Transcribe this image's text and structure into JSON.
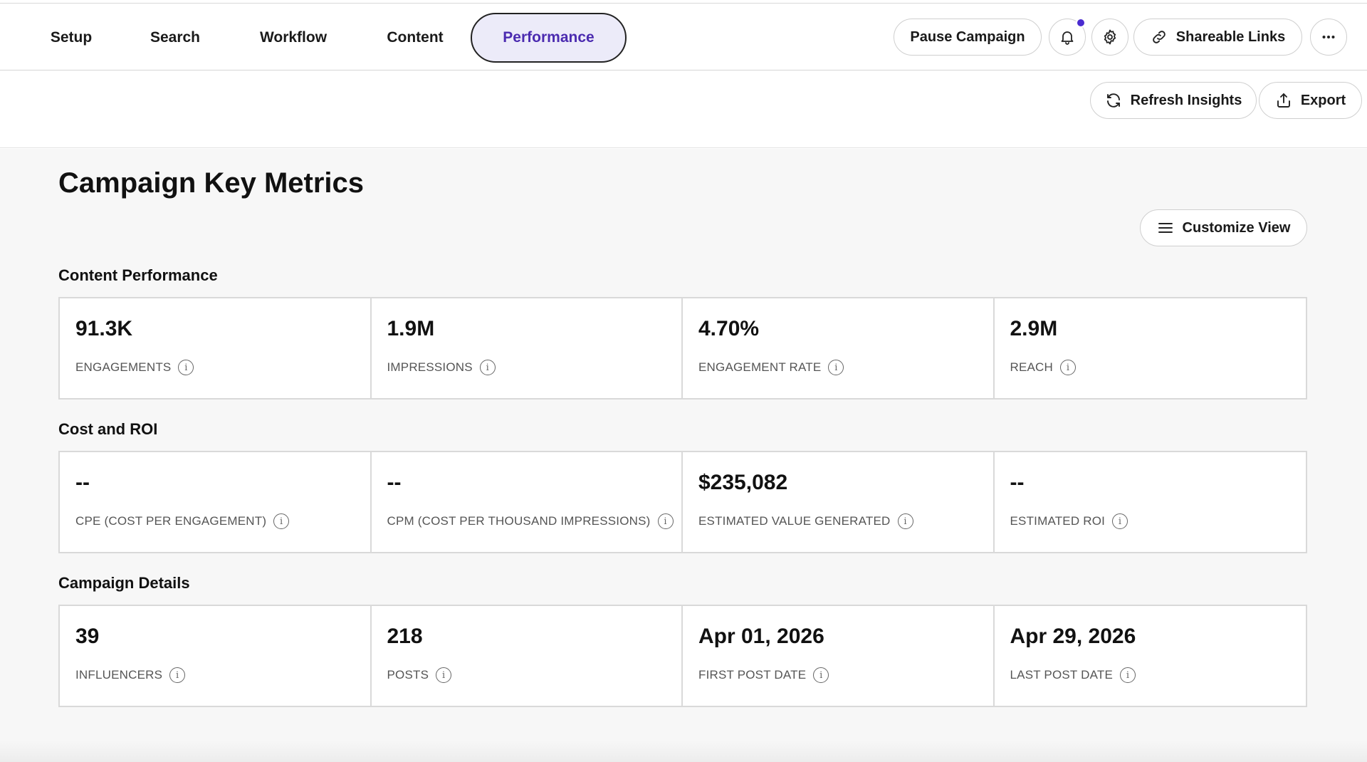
{
  "nav": {
    "tabs": [
      {
        "label": "Setup"
      },
      {
        "label": "Search"
      },
      {
        "label": "Workflow"
      },
      {
        "label": "Content"
      },
      {
        "label": "Performance"
      }
    ],
    "active_tab": "Performance",
    "pause_label": "Pause Campaign",
    "share_label": "Shareable Links"
  },
  "toolbar": {
    "refresh_label": "Refresh Insights",
    "export_label": "Export"
  },
  "main": {
    "title": "Campaign Key Metrics",
    "customize_label": "Customize View",
    "sections": [
      {
        "title": "Content Performance",
        "metrics": [
          {
            "value": "91.3K",
            "label": "ENGAGEMENTS"
          },
          {
            "value": "1.9M",
            "label": "IMPRESSIONS"
          },
          {
            "value": "4.70%",
            "label": "ENGAGEMENT RATE"
          },
          {
            "value": "2.9M",
            "label": "REACH"
          }
        ]
      },
      {
        "title": "Cost and ROI",
        "metrics": [
          {
            "value": "--",
            "label": "CPE (COST PER ENGAGEMENT)"
          },
          {
            "value": "--",
            "label": "CPM (COST PER THOUSAND IMPRESSIONS)"
          },
          {
            "value": "$235,082",
            "label": "ESTIMATED VALUE GENERATED"
          },
          {
            "value": "--",
            "label": "ESTIMATED ROI"
          }
        ]
      },
      {
        "title": "Campaign Details",
        "metrics": [
          {
            "value": "39",
            "label": "INFLUENCERS"
          },
          {
            "value": "218",
            "label": "POSTS"
          },
          {
            "value": "Apr 01, 2026",
            "label": "FIRST POST DATE"
          },
          {
            "value": "Apr 29, 2026",
            "label": "LAST POST DATE"
          }
        ]
      }
    ]
  },
  "colors": {
    "accent": "#4b2bb0",
    "active_tab_bg": "#ecebf9",
    "notification_dot": "#4a2bd0"
  },
  "icons": [
    "bell-icon",
    "gear-icon",
    "link-icon",
    "more-icon",
    "refresh-icon",
    "export-icon",
    "menu-icon",
    "info-icon"
  ]
}
